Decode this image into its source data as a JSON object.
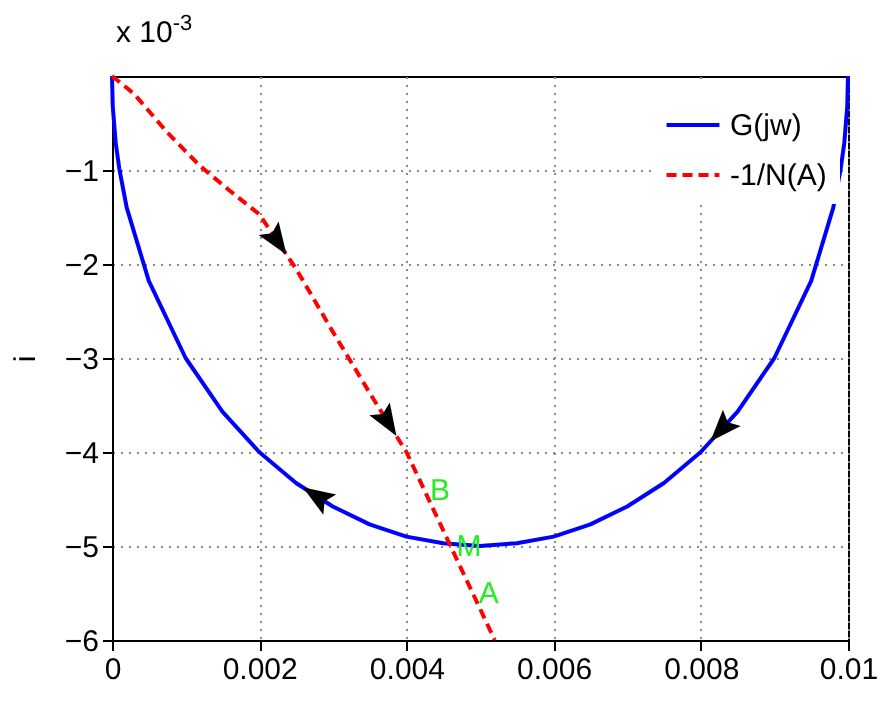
{
  "chart_data": {
    "type": "line",
    "ylabel": "i",
    "annotations": [
      "x 10$^{-3}$",
      {
        "text": "B",
        "x": 0.00424,
        "y": -4.4
      },
      {
        "text": "M",
        "x": 0.0046,
        "y": -5.0
      },
      {
        "text": "A",
        "x": 0.0049,
        "y": -5.5
      }
    ],
    "xlim": [
      0,
      0.01
    ],
    "xticks": [
      0,
      0.002,
      0.004,
      0.006,
      0.008,
      0.01
    ],
    "ylim": [
      -6,
      0
    ],
    "yticks": [
      -6,
      -5,
      -4,
      -3,
      -2,
      -1
    ],
    "grid": true,
    "legend": "top right",
    "marker": "none",
    "series": [
      {
        "name": "G(jw)",
        "color": "#0000ff",
        "line_style": "solid",
        "x": [
          0,
          1e-05,
          5e-05,
          0.0001,
          0.0002,
          0.0005,
          0.001,
          0.0015,
          0.002,
          0.0025,
          0.003,
          0.0035,
          0.004,
          0.0045,
          0.005,
          0.0055,
          0.006,
          0.0065,
          0.007,
          0.0075,
          0.008,
          0.0085,
          0.009,
          0.0095,
          0.0098,
          0.0099,
          0.00995,
          0.00999,
          0.01
        ],
        "values": [
          0,
          -0.32,
          -0.71,
          -0.99,
          -1.4,
          -2.18,
          -3,
          -3.57,
          -4,
          -4.33,
          -4.58,
          -4.77,
          -4.9,
          -4.97,
          -5,
          -4.97,
          -4.9,
          -4.77,
          -4.58,
          -4.33,
          -4,
          -3.57,
          -3,
          -2.18,
          -1.4,
          -0.99,
          -0.71,
          -0.32,
          0
        ]
      },
      {
        "name": "-1/N(A)",
        "color": "#ff0000",
        "line_style": "dashed",
        "x": [
          0,
          0.0003,
          0.00075,
          0.0012,
          0.0016,
          0.002,
          0.0025,
          0.003,
          0.0035,
          0.004,
          0.0046,
          0.0052
        ],
        "values": [
          0,
          -0.19,
          -0.6,
          -0.96,
          -1.22,
          -1.47,
          -2.05,
          -2.72,
          -3.37,
          -4.0,
          -5.0,
          -6.0
        ]
      }
    ]
  }
}
